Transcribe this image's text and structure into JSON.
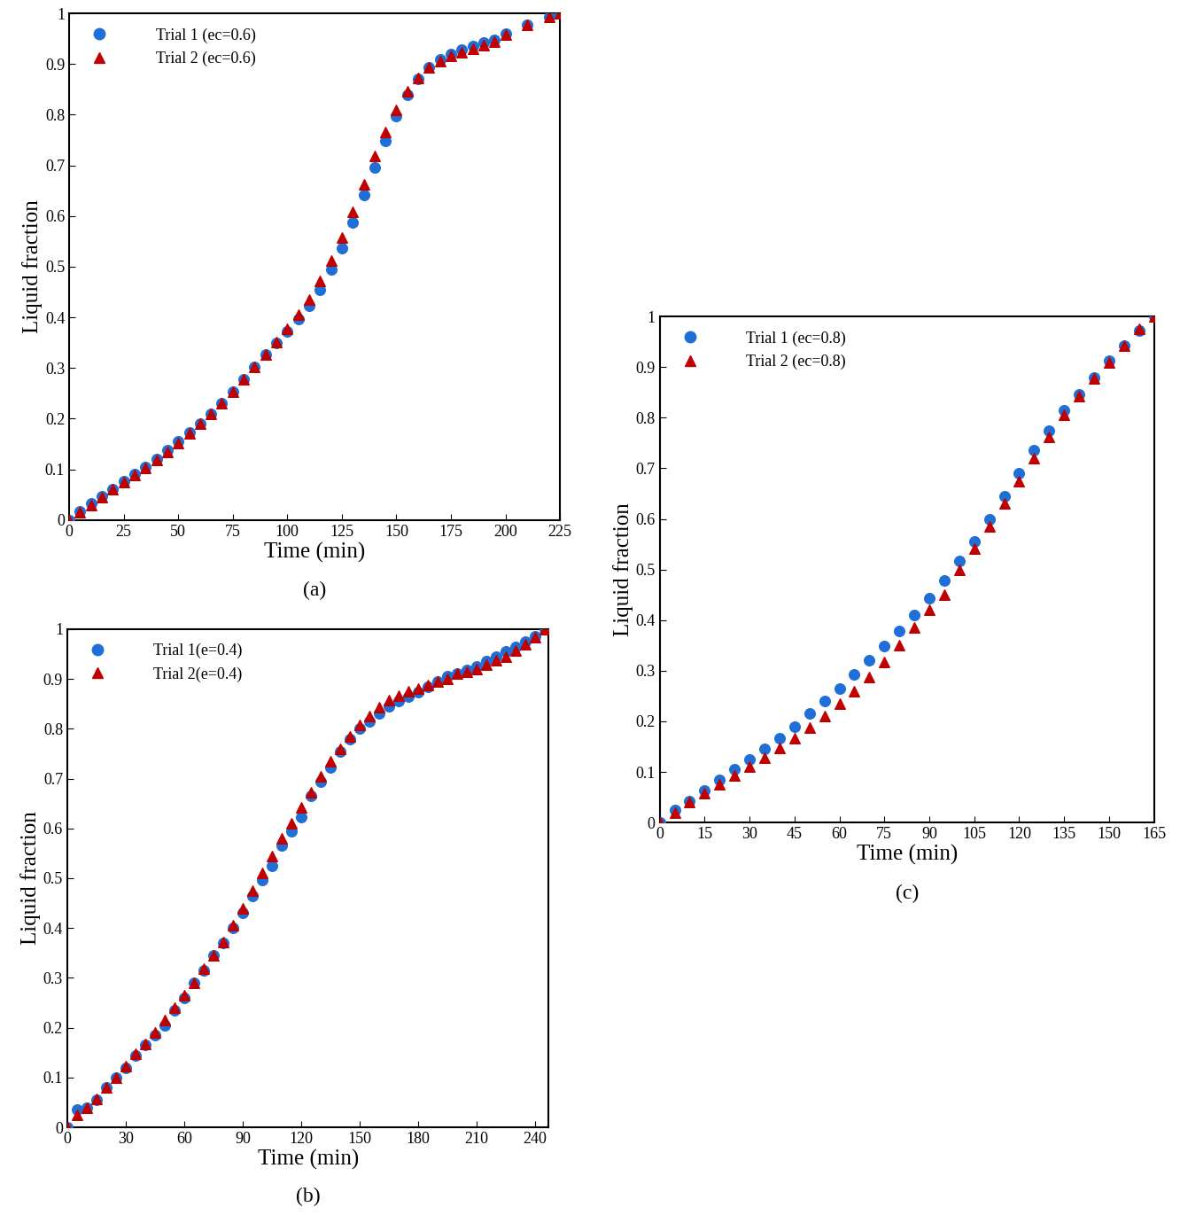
{
  "chart_data": [
    {
      "type": "scatter",
      "annotations": [
        "(a)"
      ],
      "x_label": "Time (min)",
      "y_label": "Liquid fraction",
      "legend": "upper left",
      "xlim": [
        0,
        225
      ],
      "xticks": [
        0,
        25,
        50,
        75,
        100,
        125,
        150,
        175,
        200,
        225
      ],
      "ylim": [
        0,
        1
      ],
      "yticks": [
        0,
        0.1,
        0.2,
        0.3,
        0.4,
        0.5,
        0.6,
        0.7,
        0.8,
        0.9,
        1
      ],
      "x": [
        0,
        5,
        10,
        15,
        20,
        25,
        30,
        35,
        40,
        45,
        50,
        55,
        60,
        65,
        70,
        75,
        80,
        85,
        90,
        95,
        100,
        105,
        110,
        115,
        120,
        125,
        130,
        135,
        140,
        145,
        150,
        155,
        160,
        165,
        170,
        175,
        180,
        185,
        190,
        195,
        200,
        210,
        220,
        225
      ],
      "series": [
        {
          "name": "Trial 1 (ec=0.6)",
          "color": "#1f6fd6",
          "marker": "circle",
          "values": [
            0,
            0.017,
            0.032,
            0.046,
            0.06,
            0.076,
            0.09,
            0.105,
            0.12,
            0.137,
            0.155,
            0.173,
            0.19,
            0.21,
            0.23,
            0.253,
            0.277,
            0.302,
            0.327,
            0.35,
            0.373,
            0.396,
            0.423,
            0.455,
            0.494,
            0.537,
            0.588,
            0.641,
            0.696,
            0.748,
            0.797,
            0.839,
            0.87,
            0.893,
            0.91,
            0.92,
            0.928,
            0.935,
            0.942,
            0.948,
            0.96,
            0.978,
            0.993,
            1.0
          ]
        },
        {
          "name": "Trial 2 (ec=0.6)",
          "color": "#c00000",
          "marker": "triangle",
          "values": [
            0,
            0.015,
            0.03,
            0.045,
            0.06,
            0.074,
            0.088,
            0.103,
            0.118,
            0.135,
            0.152,
            0.171,
            0.19,
            0.21,
            0.23,
            0.254,
            0.278,
            0.302,
            0.327,
            0.352,
            0.378,
            0.405,
            0.436,
            0.472,
            0.512,
            0.558,
            0.608,
            0.663,
            0.718,
            0.765,
            0.81,
            0.847,
            0.872,
            0.893,
            0.906,
            0.916,
            0.924,
            0.93,
            0.938,
            0.945,
            0.958,
            0.978,
            0.993,
            1.0
          ]
        }
      ]
    },
    {
      "type": "scatter",
      "annotations": [
        "(b)"
      ],
      "x_label": "Time (min)",
      "y_label": "Liquid fraction",
      "legend": "upper left",
      "xlim": [
        0,
        247
      ],
      "xticks": [
        0,
        30,
        60,
        90,
        120,
        150,
        180,
        210,
        240
      ],
      "ylim": [
        0,
        1
      ],
      "yticks": [
        0,
        0.1,
        0.2,
        0.3,
        0.4,
        0.5,
        0.6,
        0.7,
        0.8,
        0.9,
        1
      ],
      "x": [
        0,
        5,
        10,
        15,
        20,
        25,
        30,
        35,
        40,
        45,
        50,
        55,
        60,
        65,
        70,
        75,
        80,
        85,
        90,
        95,
        100,
        105,
        110,
        115,
        120,
        125,
        130,
        135,
        140,
        145,
        150,
        155,
        160,
        165,
        170,
        175,
        180,
        185,
        190,
        195,
        200,
        205,
        210,
        215,
        220,
        225,
        230,
        235,
        240,
        245
      ],
      "series": [
        {
          "name": "Trial 1(e=0.4)",
          "color": "#1f6fd6",
          "marker": "circle",
          "values": [
            0,
            0.035,
            0.04,
            0.055,
            0.08,
            0.1,
            0.12,
            0.145,
            0.165,
            0.185,
            0.205,
            0.235,
            0.26,
            0.29,
            0.315,
            0.345,
            0.37,
            0.4,
            0.43,
            0.465,
            0.497,
            0.525,
            0.565,
            0.595,
            0.622,
            0.665,
            0.693,
            0.722,
            0.755,
            0.78,
            0.8,
            0.815,
            0.83,
            0.845,
            0.855,
            0.865,
            0.873,
            0.885,
            0.895,
            0.905,
            0.91,
            0.918,
            0.925,
            0.935,
            0.945,
            0.955,
            0.965,
            0.975,
            0.985,
            1.0
          ]
        },
        {
          "name": "Trial 2(e=0.4)",
          "color": "#c00000",
          "marker": "triangle",
          "values": [
            0,
            0.025,
            0.04,
            0.057,
            0.08,
            0.1,
            0.123,
            0.148,
            0.167,
            0.19,
            0.215,
            0.24,
            0.265,
            0.29,
            0.318,
            0.345,
            0.372,
            0.405,
            0.44,
            0.475,
            0.51,
            0.545,
            0.58,
            0.61,
            0.642,
            0.672,
            0.705,
            0.735,
            0.76,
            0.785,
            0.808,
            0.825,
            0.843,
            0.857,
            0.867,
            0.875,
            0.88,
            0.888,
            0.895,
            0.9,
            0.91,
            0.915,
            0.92,
            0.928,
            0.937,
            0.945,
            0.958,
            0.97,
            0.983,
            1.0
          ]
        }
      ]
    },
    {
      "type": "scatter",
      "annotations": [
        "(c)"
      ],
      "x_label": "Time (min)",
      "y_label": "Liquid fraction",
      "legend": "upper left",
      "xlim": [
        0,
        165
      ],
      "xticks": [
        0,
        15,
        30,
        45,
        60,
        75,
        90,
        105,
        120,
        135,
        150,
        165
      ],
      "ylim": [
        0,
        1
      ],
      "yticks": [
        0,
        0.1,
        0.2,
        0.3,
        0.4,
        0.5,
        0.6,
        0.7,
        0.8,
        0.9,
        1
      ],
      "x": [
        0,
        5,
        10,
        15,
        20,
        25,
        30,
        35,
        40,
        45,
        50,
        55,
        60,
        65,
        70,
        75,
        80,
        85,
        90,
        95,
        100,
        105,
        110,
        115,
        120,
        125,
        130,
        135,
        140,
        145,
        150,
        155,
        160,
        165
      ],
      "series": [
        {
          "name": "Trial 1 (ec=0.8)",
          "color": "#1f6fd6",
          "marker": "circle",
          "values": [
            0,
            0.025,
            0.043,
            0.063,
            0.084,
            0.105,
            0.125,
            0.146,
            0.167,
            0.19,
            0.215,
            0.24,
            0.265,
            0.292,
            0.32,
            0.348,
            0.378,
            0.41,
            0.443,
            0.478,
            0.517,
            0.556,
            0.6,
            0.645,
            0.69,
            0.735,
            0.775,
            0.815,
            0.847,
            0.88,
            0.912,
            0.943,
            0.973,
            1.0
          ]
        },
        {
          "name": "Trial 2 (ec=0.8)",
          "color": "#c00000",
          "marker": "triangle",
          "values": [
            0,
            0.02,
            0.04,
            0.058,
            0.075,
            0.093,
            0.11,
            0.128,
            0.147,
            0.167,
            0.188,
            0.21,
            0.235,
            0.26,
            0.288,
            0.318,
            0.35,
            0.385,
            0.42,
            0.45,
            0.5,
            0.542,
            0.585,
            0.63,
            0.675,
            0.72,
            0.762,
            0.805,
            0.843,
            0.878,
            0.91,
            0.943,
            0.975,
            1.0
          ]
        }
      ]
    }
  ]
}
